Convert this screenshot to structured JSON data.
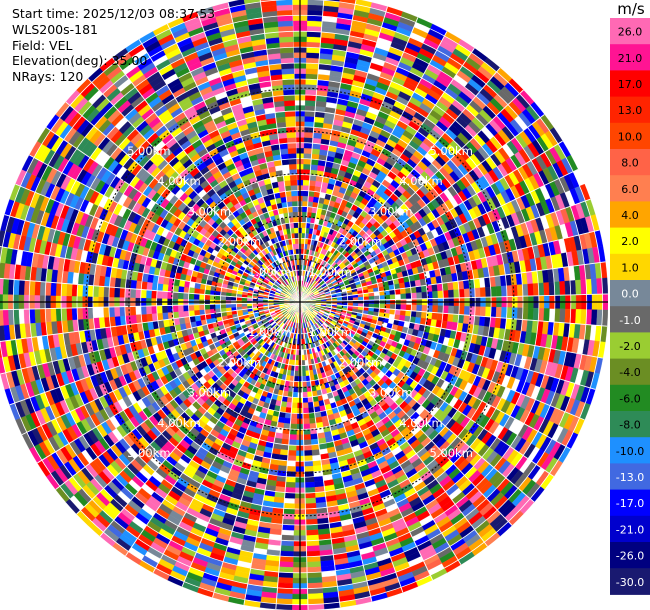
{
  "header": {
    "start_time": "Start time: 2025/12/03 08:37:53",
    "instrument": "WLS200s-181",
    "field": "Field: VEL",
    "elevation": "Elevation(deg): 35.00",
    "nrays": "NRays: 120"
  },
  "chart_data": {
    "type": "heatmap",
    "projection": "polar-ppi",
    "field": "VEL",
    "unit": "m/s",
    "nrays": 120,
    "elevation_deg": 35.0,
    "range_rings_km": [
      {
        "label": "1.00km",
        "value": 1.0
      },
      {
        "label": "2.00km",
        "value": 2.0
      },
      {
        "label": "3.00km",
        "value": 3.0
      },
      {
        "label": "4.00km",
        "value": 4.0
      },
      {
        "label": "5.00km",
        "value": 5.0
      }
    ],
    "max_range_km": 7.2,
    "colorbar": {
      "ticks": [
        "26.0",
        "21.0",
        "17.0",
        "13.0",
        "10.0",
        "8.0",
        "6.0",
        "4.0",
        "2.0",
        "1.0",
        "0.0",
        "-1.0",
        "-2.0",
        "-4.0",
        "-6.0",
        "-8.0",
        "-10.0",
        "-13.0",
        "-17.0",
        "-21.0",
        "-26.0",
        "-30.0"
      ],
      "colors": [
        "#ff69b4",
        "#ff1493",
        "#ff0000",
        "#ff2400",
        "#ff4500",
        "#ff6347",
        "#ff7f50",
        "#ffa500",
        "#ffff00",
        "#ffd700",
        "#778899",
        "#696969",
        "#9acd32",
        "#6b8e23",
        "#228b22",
        "#2e8b57",
        "#1e90ff",
        "#4169e1",
        "#0000ff",
        "#0000cd",
        "#000080",
        "#191970"
      ]
    }
  }
}
